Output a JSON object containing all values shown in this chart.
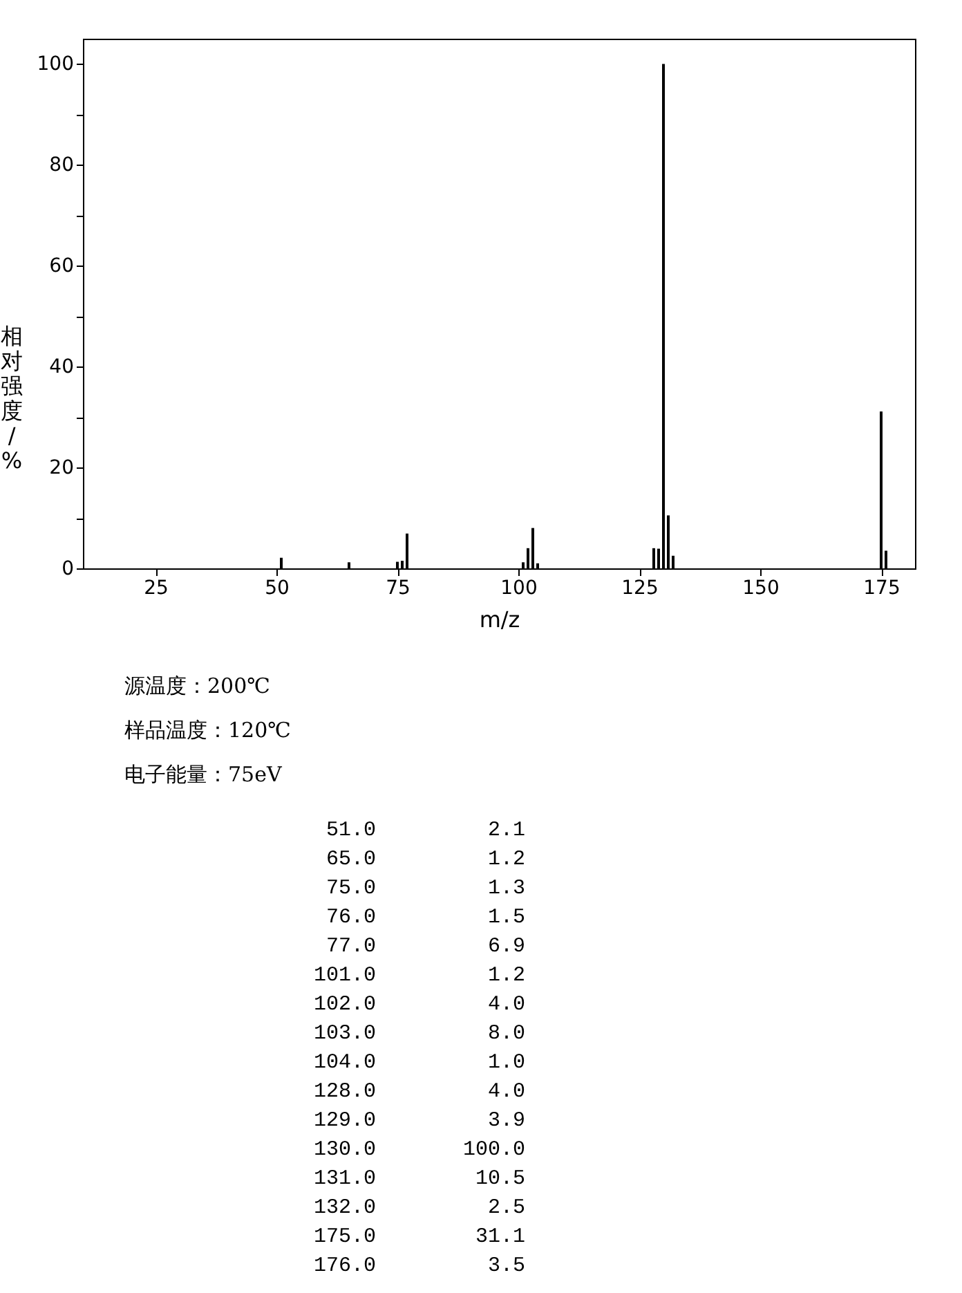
{
  "chart_data": {
    "type": "bar",
    "xlabel": "m/z",
    "ylabel": "相对强度/%",
    "x": [
      51,
      65,
      75,
      76,
      77,
      101,
      102,
      103,
      104,
      128,
      129,
      130,
      131,
      132,
      175,
      176
    ],
    "values": [
      2.1,
      1.2,
      1.3,
      1.5,
      6.9,
      1.2,
      4.0,
      8.0,
      1.0,
      4.0,
      3.9,
      100.0,
      10.5,
      2.5,
      31.1,
      3.5
    ],
    "color": "#000000",
    "xlim": [
      10,
      182
    ],
    "xticks": [
      25,
      50,
      75,
      100,
      125,
      150,
      175
    ],
    "ylim": [
      0,
      105
    ],
    "yticks": [
      0,
      {
        "value": 10,
        "label": null
      },
      20,
      {
        "value": 30,
        "label": null
      },
      40,
      {
        "value": 50,
        "label": null
      },
      60,
      {
        "value": 70,
        "label": null
      },
      80,
      {
        "value": 90,
        "label": null
      },
      100
    ],
    "grid": false,
    "annotations": [
      "源温度：200℃",
      "样品温度：120℃",
      "电子能量：75eV",
      "51.0         2.1",
      "65.0         1.2",
      "75.0         1.3",
      "76.0         1.5",
      "77.0         6.9",
      "101.0         1.2",
      "102.0         4.0",
      "103.0         8.0",
      "104.0         1.0",
      "128.0         4.0",
      "129.0         3.9",
      "130.0       100.0",
      "131.0        10.5",
      "132.0         2.5",
      "175.0        31.1",
      "176.0         3.5"
    ]
  }
}
